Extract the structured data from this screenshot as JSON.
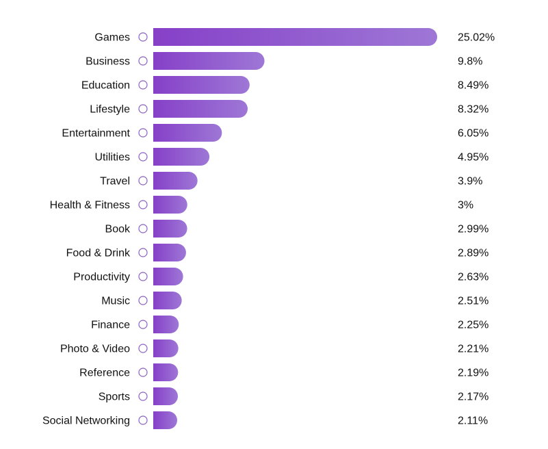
{
  "chart_data": {
    "type": "bar",
    "orientation": "horizontal",
    "categories": [
      "Games",
      "Business",
      "Education",
      "Lifestyle",
      "Entertainment",
      "Utilities",
      "Travel",
      "Health & Fitness",
      "Book",
      "Food & Drink",
      "Productivity",
      "Music",
      "Finance",
      "Photo & Video",
      "Reference",
      "Sports",
      "Social Networking"
    ],
    "values": [
      25.02,
      9.8,
      8.49,
      8.32,
      6.05,
      4.95,
      3.9,
      3,
      2.99,
      2.89,
      2.63,
      2.51,
      2.25,
      2.21,
      2.19,
      2.17,
      2.11
    ],
    "value_labels": [
      "25.02%",
      "9.8%",
      "8.49%",
      "8.32%",
      "6.05%",
      "4.95%",
      "3.9%",
      "3%",
      "2.99%",
      "2.89%",
      "2.63%",
      "2.51%",
      "2.25%",
      "2.21%",
      "2.19%",
      "2.17%",
      "2.11%"
    ],
    "title": "",
    "xlabel": "",
    "ylabel": "",
    "xlim": [
      0,
      25.02
    ],
    "grid": false,
    "legend": "none",
    "colors": {
      "bar_start": "#8640c8",
      "bar_end": "#9e77d6",
      "marker_stroke": "#8a5fc8",
      "text": "#111111"
    },
    "marker_icon": "circle-outline-icon"
  }
}
